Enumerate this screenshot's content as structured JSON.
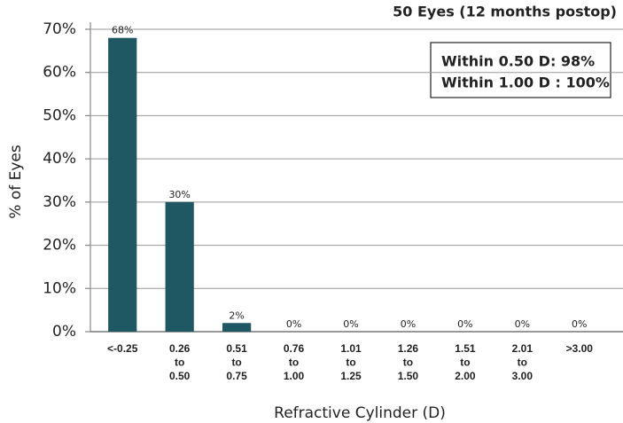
{
  "chart_data": {
    "type": "bar",
    "y_label": "% of Eyes",
    "x_label": "Refractive Cylinder (D)",
    "annotations": [
      "50 Eyes (12 months postop)",
      "Within 0.50 D: 98%",
      "Within 1.00 D : 100%"
    ],
    "categories": [
      [
        "<-0.25"
      ],
      [
        "0.26",
        "to",
        "0.50"
      ],
      [
        "0.51",
        "to",
        "0.75"
      ],
      [
        "0.76",
        "to",
        "1.00"
      ],
      [
        "1.01",
        "to",
        "1.25"
      ],
      [
        "1.26",
        "to",
        "1.50"
      ],
      [
        "1.51",
        "to",
        "2.00"
      ],
      [
        "2.01",
        "to",
        "3.00"
      ],
      [
        ">3.00"
      ]
    ],
    "values": [
      68,
      30,
      2,
      0,
      0,
      0,
      0,
      0,
      0
    ],
    "value_labels": [
      "68%",
      "30%",
      "2%",
      "0%",
      "0%",
      "0%",
      "0%",
      "0%",
      "0%"
    ],
    "color": "#1f5763",
    "ylim": [
      0,
      70
    ],
    "yticks": [
      {
        "value": 0,
        "label": "0%"
      },
      {
        "value": 10,
        "label": "10%"
      },
      {
        "value": 20,
        "label": "20%"
      },
      {
        "value": 30,
        "label": "30%"
      },
      {
        "value": 40,
        "label": "40%"
      },
      {
        "value": 50,
        "label": "50%"
      },
      {
        "value": 60,
        "label": "60%"
      },
      {
        "value": 70,
        "label": "70%"
      }
    ],
    "grid": true
  }
}
